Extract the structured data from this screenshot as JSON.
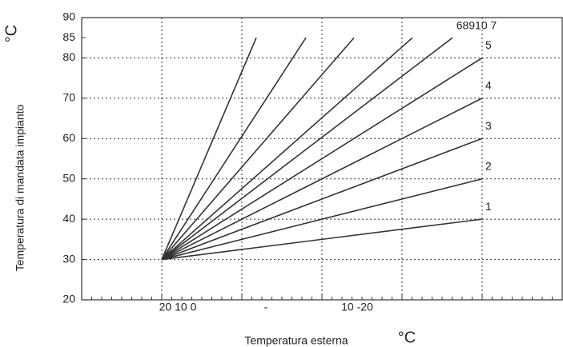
{
  "chart_data": {
    "type": "line",
    "y_label": "Temperatura di mandata impianto",
    "y_unit": "°C",
    "x_label": "Temperatura esterna",
    "x_unit": "°C",
    "x_tick_texts": [
      "20 10 0",
      "-",
      "10 -20"
    ],
    "curve_group_label": "68910 7",
    "xlim": [
      30,
      -30
    ],
    "xgrid": [
      20,
      10,
      0,
      -10,
      -20
    ],
    "ylim": [
      20,
      90
    ],
    "yticks": [
      20,
      30,
      40,
      50,
      60,
      70,
      80,
      85,
      90
    ],
    "grid": true,
    "color": "#333333",
    "series": [
      {
        "name": "1",
        "x": [
          20,
          -20
        ],
        "values": [
          30,
          40
        ]
      },
      {
        "name": "2",
        "x": [
          20,
          -20
        ],
        "values": [
          30,
          50
        ]
      },
      {
        "name": "3",
        "x": [
          20,
          -20
        ],
        "values": [
          30,
          60
        ]
      },
      {
        "name": "4",
        "x": [
          20,
          -20
        ],
        "values": [
          30,
          70
        ]
      },
      {
        "name": "5",
        "x": [
          20,
          -20
        ],
        "values": [
          30,
          80
        ]
      },
      {
        "x": [
          20,
          8.2
        ],
        "values": [
          30,
          85
        ]
      },
      {
        "x": [
          20,
          2
        ],
        "values": [
          30,
          85
        ]
      },
      {
        "x": [
          20,
          -4
        ],
        "values": [
          30,
          85
        ]
      },
      {
        "x": [
          20,
          -11.3
        ],
        "values": [
          30,
          85
        ]
      },
      {
        "x": [
          20,
          -16.3
        ],
        "values": [
          30,
          85
        ]
      }
    ]
  }
}
